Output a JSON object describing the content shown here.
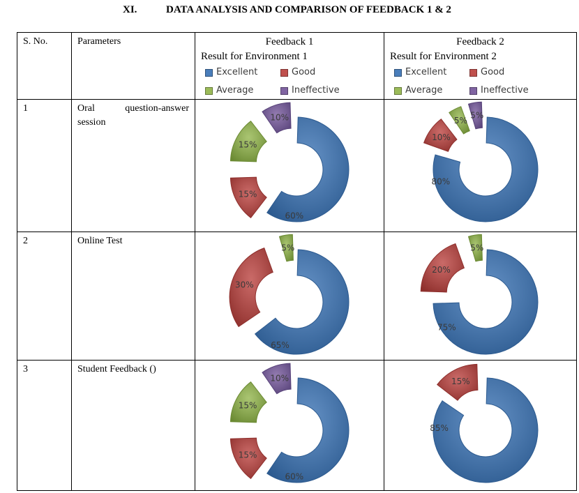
{
  "heading": {
    "number": "XI.",
    "title": "DATA ANALYSIS AND COMPARISON OF FEEDBACK 1 & 2"
  },
  "table": {
    "headers": {
      "sno": "S. No.",
      "parameters": "Parameters",
      "fb1": "Feedback 1",
      "fb2": "Feedback 2",
      "env1": "Result for Environment 1",
      "env2": "Result for Environment 2"
    },
    "legend": [
      "Excellent",
      "Good",
      "Average",
      "Ineffective"
    ],
    "rows": [
      {
        "sno": "1",
        "param": "Oral question-answer session"
      },
      {
        "sno": "2",
        "param": "Online Test"
      },
      {
        "sno": "3",
        "param": "Student Feedback ()"
      }
    ]
  },
  "colors": {
    "Excellent": "#4a7ebb",
    "Good": "#c0504d",
    "Average": "#9bbb59",
    "Ineffective": "#8064a2"
  },
  "chart_data": [
    {
      "type": "pie",
      "variant": "exploded-doughnut",
      "row": 1,
      "feedback": 1,
      "categories": [
        "Excellent",
        "Good",
        "Average",
        "Ineffective"
      ],
      "values": [
        60,
        15,
        15,
        10
      ],
      "labels": [
        "60%",
        "15%",
        "15%",
        "10%"
      ]
    },
    {
      "type": "pie",
      "variant": "exploded-doughnut",
      "row": 1,
      "feedback": 2,
      "categories": [
        "Excellent",
        "Good",
        "Average",
        "Ineffective"
      ],
      "values": [
        80,
        10,
        5,
        5
      ],
      "labels": [
        "80%",
        "10%",
        "5%",
        "5%"
      ]
    },
    {
      "type": "pie",
      "variant": "exploded-doughnut",
      "row": 2,
      "feedback": 1,
      "categories": [
        "Excellent",
        "Good",
        "Average",
        "Ineffective"
      ],
      "values": [
        65,
        30,
        5,
        0
      ],
      "labels": [
        "65%",
        "30%",
        "5%",
        ""
      ]
    },
    {
      "type": "pie",
      "variant": "exploded-doughnut",
      "row": 2,
      "feedback": 2,
      "categories": [
        "Excellent",
        "Good",
        "Average",
        "Ineffective"
      ],
      "values": [
        75,
        20,
        5,
        0
      ],
      "labels": [
        "75%",
        "20%",
        "5%",
        ""
      ]
    },
    {
      "type": "pie",
      "variant": "exploded-doughnut",
      "row": 3,
      "feedback": 1,
      "categories": [
        "Excellent",
        "Good",
        "Average",
        "Ineffective"
      ],
      "values": [
        60,
        15,
        15,
        10
      ],
      "labels": [
        "60%",
        "15%",
        "15%",
        "10%"
      ]
    },
    {
      "type": "pie",
      "variant": "exploded-doughnut",
      "row": 3,
      "feedback": 2,
      "categories": [
        "Excellent",
        "Good",
        "Average",
        "Ineffective"
      ],
      "values": [
        85,
        15,
        0,
        0
      ],
      "labels": [
        "85%",
        "15%",
        "",
        ""
      ]
    }
  ]
}
